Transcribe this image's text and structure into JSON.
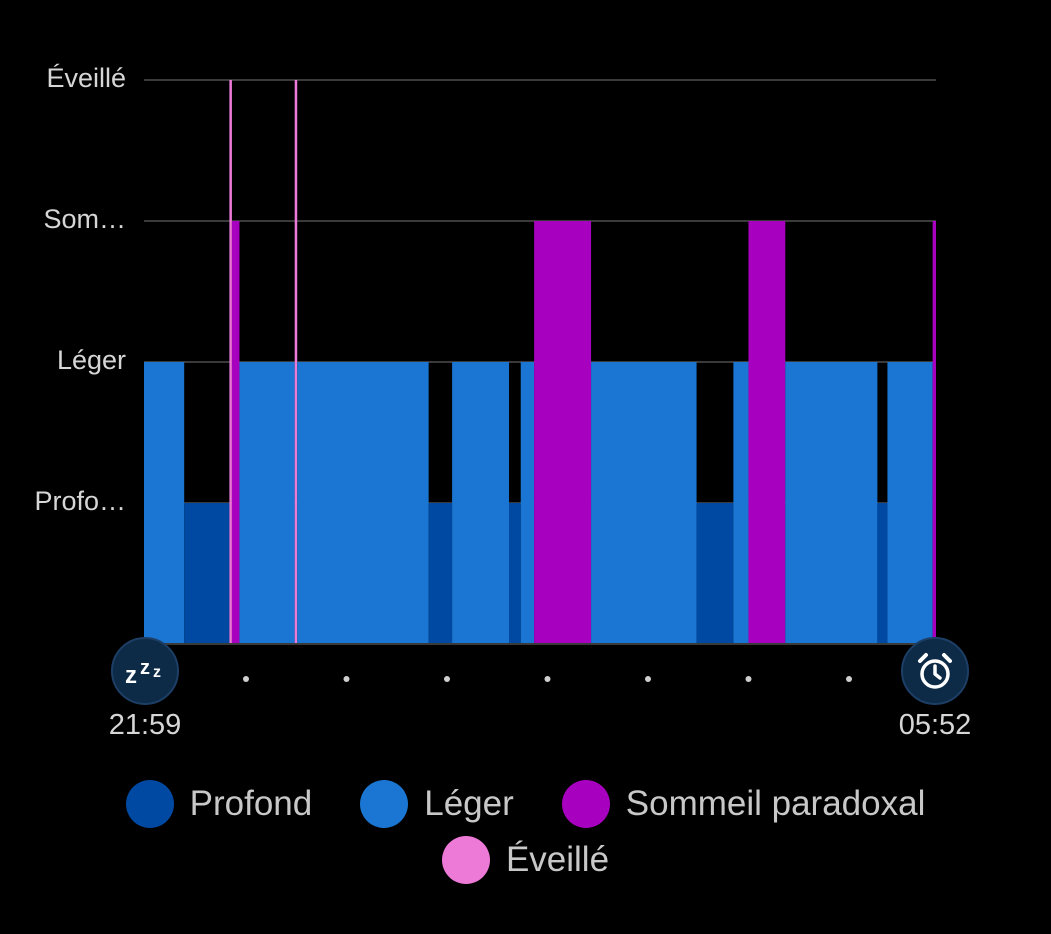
{
  "chart_data": {
    "type": "bar",
    "subtype": "hypnogram",
    "y_levels": [
      "Profo…",
      "Léger",
      "Som…",
      "Éveillé"
    ],
    "x_start_label": "21:59",
    "x_end_label": "05:52",
    "x_unit": "minutes since 21:59",
    "x_range": [
      0,
      473
    ],
    "stages": {
      "deep": {
        "label": "Profond",
        "color": "#0049a3",
        "level": 1
      },
      "light": {
        "label": "Léger",
        "color": "#1a76d2",
        "level": 2
      },
      "rem": {
        "label": "Sommeil paradoxal",
        "color": "#a800bf",
        "level": 3
      },
      "awake": {
        "label": "Éveillé",
        "color": "#ee7ad8",
        "level": 4
      }
    },
    "segments": [
      {
        "stage": "light",
        "start": 0,
        "end": 24
      },
      {
        "stage": "deep",
        "start": 24,
        "end": 51
      },
      {
        "stage": "awake",
        "start": 51,
        "end": 52.5
      },
      {
        "stage": "rem",
        "start": 52.5,
        "end": 57
      },
      {
        "stage": "light",
        "start": 57,
        "end": 90
      },
      {
        "stage": "awake",
        "start": 90,
        "end": 91.5
      },
      {
        "stage": "light",
        "start": 91.5,
        "end": 170
      },
      {
        "stage": "deep",
        "start": 170,
        "end": 184
      },
      {
        "stage": "light",
        "start": 184,
        "end": 218
      },
      {
        "stage": "deep",
        "start": 218,
        "end": 225
      },
      {
        "stage": "light",
        "start": 225,
        "end": 233
      },
      {
        "stage": "rem",
        "start": 233,
        "end": 267
      },
      {
        "stage": "light",
        "start": 267,
        "end": 330
      },
      {
        "stage": "deep",
        "start": 330,
        "end": 352
      },
      {
        "stage": "light",
        "start": 352,
        "end": 361
      },
      {
        "stage": "rem",
        "start": 361,
        "end": 383
      },
      {
        "stage": "light",
        "start": 383,
        "end": 438
      },
      {
        "stage": "deep",
        "start": 438,
        "end": 444
      },
      {
        "stage": "light",
        "start": 444,
        "end": 471
      },
      {
        "stage": "rem",
        "start": 471,
        "end": 473
      }
    ],
    "grid": true,
    "legend_position": "bottom"
  },
  "icons": {
    "start": "sleep-zzz-icon",
    "end": "alarm-clock-icon"
  },
  "legend": {
    "row1": [
      "Profond",
      "Léger",
      "Sommeil paradoxal"
    ],
    "row2": [
      "Éveillé"
    ]
  },
  "colors": {
    "background": "#000000",
    "gridline": "#3a3a3a",
    "badge_fill": "#0d2a47",
    "text": "#d6d6d6"
  }
}
